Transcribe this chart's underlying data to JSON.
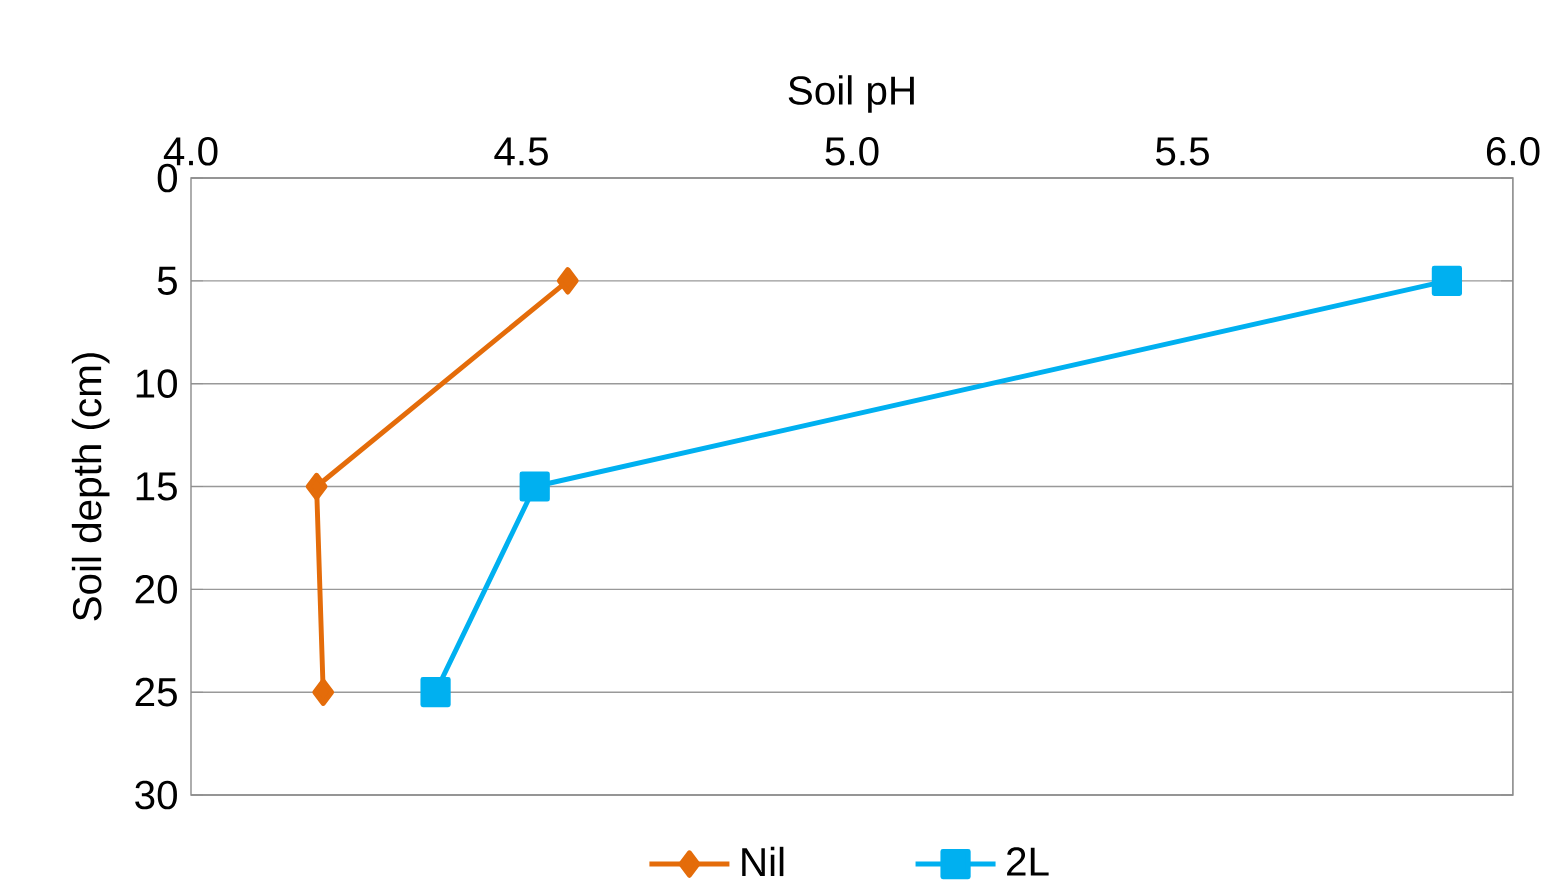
{
  "chart_data": {
    "type": "line",
    "xlabel": "Soil pH",
    "ylabel": "Soil depth (cm)",
    "xlim": [
      4.0,
      6.0
    ],
    "xticks": [
      {
        "value": 4.0,
        "label": "4.0"
      },
      {
        "value": 4.5,
        "label": "4.5"
      },
      {
        "value": 5.0,
        "label": "5.0"
      },
      {
        "value": 5.5,
        "label": "5.5"
      },
      {
        "value": 6.0,
        "label": "6.0"
      }
    ],
    "ylim": [
      30,
      0
    ],
    "yticks": [
      0,
      5,
      10,
      15,
      20,
      25,
      30
    ],
    "grid": "y",
    "legend": "bottom",
    "line_style": "solid",
    "series": [
      {
        "name": "Nil",
        "color": "#e46c0a",
        "marker": "diamond",
        "x": [
          4.57,
          4.19,
          4.2
        ],
        "values": [
          5,
          15,
          25
        ]
      },
      {
        "name": "2L",
        "color": "#00b0f0",
        "marker": "square",
        "x": [
          5.9,
          4.52,
          4.37
        ],
        "values": [
          5,
          15,
          25
        ]
      }
    ]
  }
}
